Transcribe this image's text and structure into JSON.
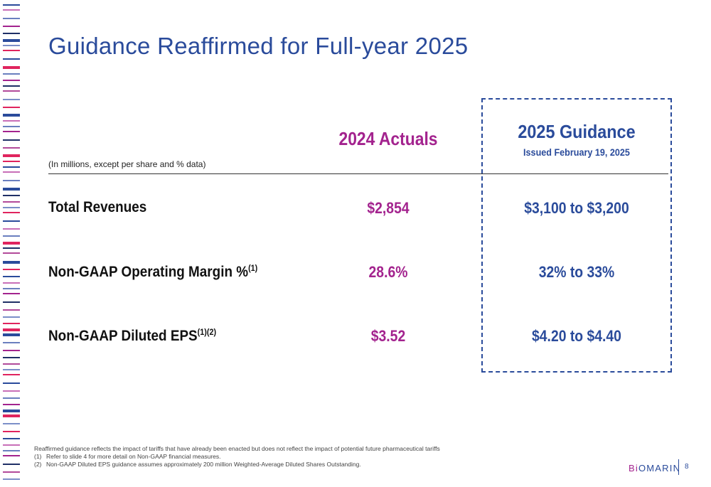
{
  "slide": {
    "title": "Guidance Reaffirmed for Full-year 2025",
    "units_note": "(In millions, except per share and % data)",
    "columns": {
      "actuals_header": "2024 Actuals",
      "guidance_header": "2025 Guidance",
      "guidance_subheader": "Issued February 19, 2025"
    },
    "rows": [
      {
        "label": "Total Revenues",
        "sup": "",
        "actual": "$2,854",
        "guidance": "$3,100 to $3,200"
      },
      {
        "label": "Non-GAAP Operating Margin %",
        "sup": "(1)",
        "actual": "28.6%",
        "guidance": "32% to 33%"
      },
      {
        "label": "Non-GAAP Diluted EPS",
        "sup": "(1)(2)",
        "actual": "$3.52",
        "guidance": "$4.20 to $4.40"
      }
    ],
    "footnotes": {
      "intro": "Reaffirmed guidance reflects the impact of tariffs that have already been enacted but does not reflect the impact of potential future pharmaceutical tariffs",
      "n1_marker": "(1)",
      "n1_text": "Refer to slide 4 for more detail on Non-GAAP financial measures.",
      "n2_marker": "(2)",
      "n2_text": "Non-GAAP Diluted EPS guidance assumes approximately 200 million Weighted-Average Diluted Shares Outstanding."
    },
    "logo": {
      "part1": "Bi",
      "part2": "OMARIN"
    },
    "page_number": "8"
  },
  "colors": {
    "primary_blue": "#2a4b9b",
    "magenta": "#a3238e"
  }
}
